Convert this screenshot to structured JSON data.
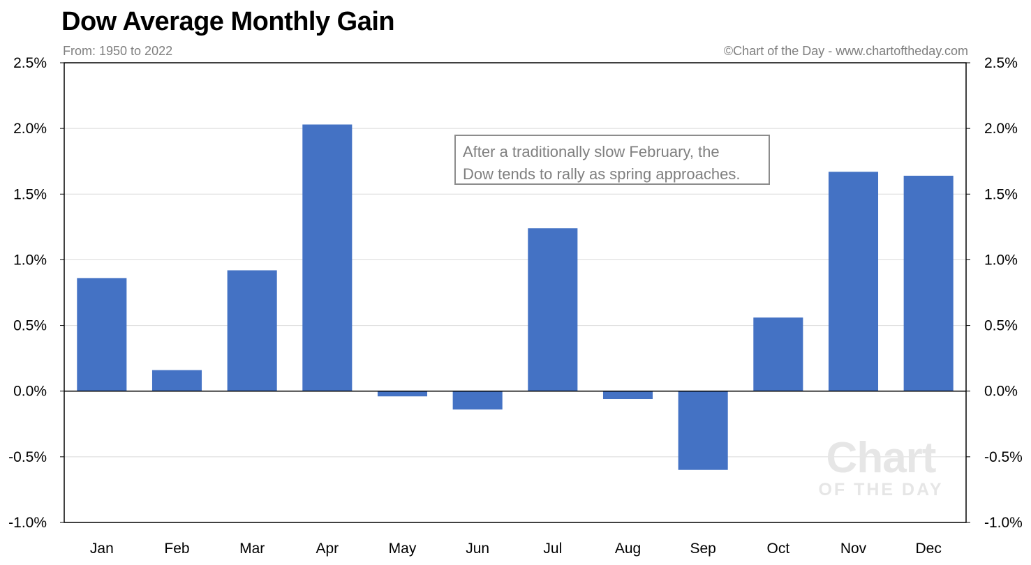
{
  "title": "Dow Average Monthly Gain",
  "subtitle": "From: 1950 to 2022",
  "credit": "©Chart of the Day - www.chartoftheday.com",
  "annotation": {
    "line1": "After a traditionally slow February, the",
    "line2": "Dow tends to rally as spring approaches."
  },
  "watermark": {
    "top": "Chart",
    "bottom": "OF THE DAY"
  },
  "colors": {
    "bar": "#4472c4",
    "grid": "#d9d9d9",
    "axis": "#000000"
  },
  "chart_data": {
    "type": "bar",
    "categories": [
      "Jan",
      "Feb",
      "Mar",
      "Apr",
      "May",
      "Jun",
      "Jul",
      "Aug",
      "Sep",
      "Oct",
      "Nov",
      "Dec"
    ],
    "values": [
      0.86,
      0.16,
      0.92,
      2.03,
      -0.04,
      -0.14,
      1.24,
      -0.06,
      -0.6,
      0.56,
      1.67,
      1.64
    ],
    "title": "Dow Average Monthly Gain",
    "ylim": [
      -1.0,
      2.5
    ],
    "yticks": [
      2.5,
      2.0,
      1.5,
      1.0,
      0.5,
      0.0,
      -0.5,
      -1.0
    ],
    "ytick_labels": [
      "2.5%",
      "2.0%",
      "1.5%",
      "1.0%",
      "0.5%",
      "0.0%",
      "-0.5%",
      "-1.0%"
    ],
    "grid": true,
    "dual_y_axis": true
  }
}
